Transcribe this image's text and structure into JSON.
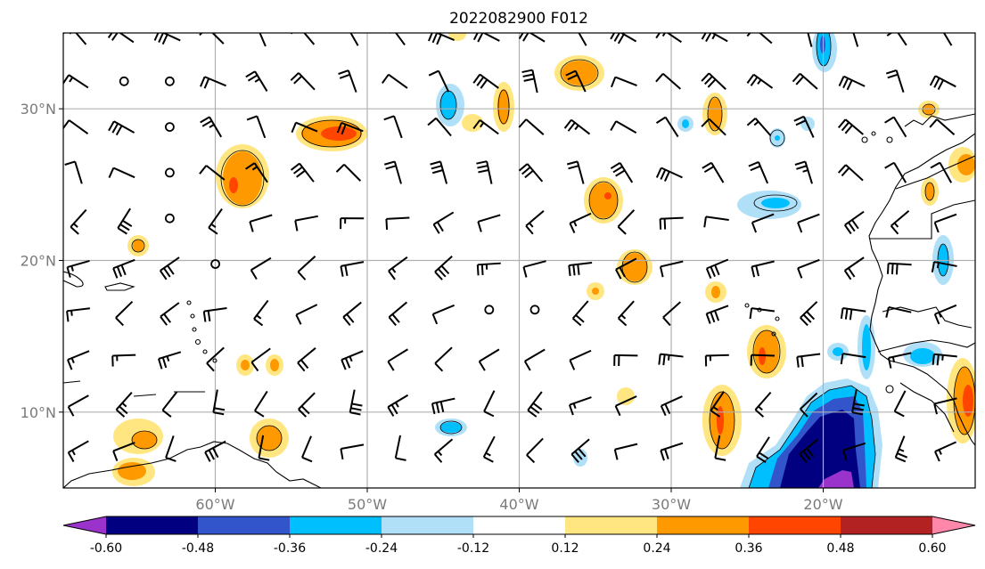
{
  "title": "2022082900 F012",
  "map": {
    "lon_range": [
      -70,
      -10
    ],
    "lat_range": [
      5,
      35
    ],
    "lon_ticks": [
      {
        "value": -60,
        "label": "60°W"
      },
      {
        "value": -50,
        "label": "50°W"
      },
      {
        "value": -40,
        "label": "40°W"
      },
      {
        "value": -30,
        "label": "30°W"
      },
      {
        "value": -20,
        "label": "20°W"
      }
    ],
    "lat_ticks": [
      {
        "value": 10,
        "label": "10°N"
      },
      {
        "value": 20,
        "label": "20°N"
      },
      {
        "value": 30,
        "label": "30°N"
      }
    ],
    "gridlines": true
  },
  "colorbar": {
    "levels": [
      "-0.60",
      "-0.48",
      "-0.36",
      "-0.24",
      "-0.12",
      "0.12",
      "0.24",
      "0.36",
      "0.48",
      "0.60"
    ],
    "colors": [
      "#9933cc",
      "#000080",
      "#3355cc",
      "#00bfff",
      "#b0e0f8",
      "#ffffff",
      "#ffe680",
      "#ff9900",
      "#ff4500",
      "#b22222",
      "#ff88aa"
    ],
    "extend": "both"
  },
  "colors": {
    "neg_strong": "#000080",
    "neg_mid": "#3355cc",
    "neg": "#00bfff",
    "neg_weak": "#b0e0f8",
    "pos_weak": "#ffe680",
    "pos": "#ff9900",
    "pos_mid": "#ff4500",
    "neg_extreme": "#9933cc"
  }
}
